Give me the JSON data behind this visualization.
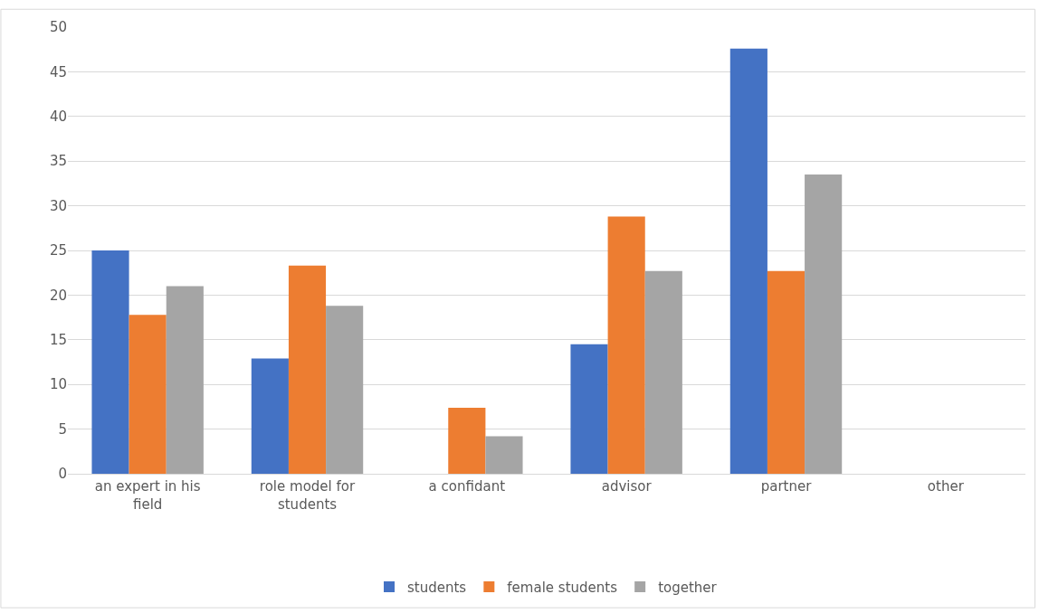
{
  "chart_data": {
    "type": "bar",
    "categories": [
      "an expert in his field",
      "role model for students",
      "a confidant",
      "advisor",
      "partner",
      "other"
    ],
    "series": [
      {
        "name": "students",
        "color": "#4472c4",
        "values": [
          25.0,
          12.9,
          0,
          14.5,
          47.6,
          0
        ]
      },
      {
        "name": "female students",
        "color": "#ed7d31",
        "values": [
          17.8,
          23.3,
          7.4,
          28.8,
          22.7,
          0
        ]
      },
      {
        "name": "together",
        "color": "#a5a5a5",
        "values": [
          21.0,
          18.8,
          4.2,
          22.7,
          33.5,
          0
        ]
      }
    ],
    "ylim": [
      0,
      50
    ],
    "yticks": [
      0,
      5,
      10,
      15,
      20,
      25,
      30,
      35,
      40,
      45,
      50
    ],
    "grid": "y",
    "legend": "bottom"
  }
}
